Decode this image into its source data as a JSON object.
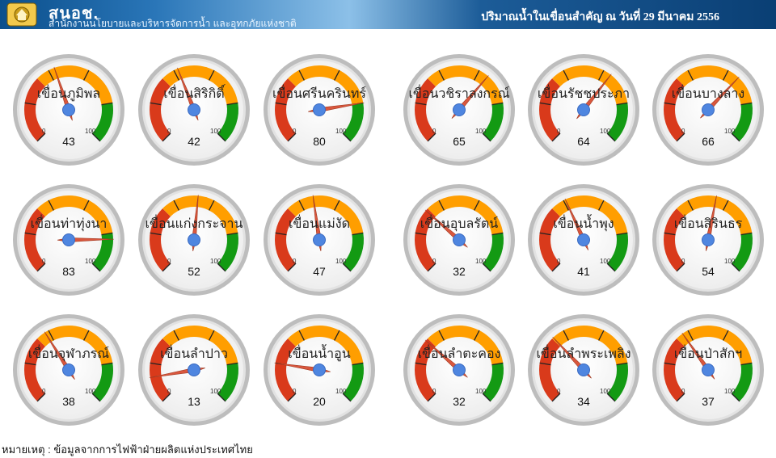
{
  "header": {
    "org_abbr": "สนอช.",
    "org_name": "สำนักงานนโยบายและบริหารจัดการน้ำ และอุทกภัยแห่งชาติ",
    "title": "ปริมาณน้ำในเขื่อนสำคัญ ณ วันที่ 29 มีนาคม 2556"
  },
  "gauge_scale": {
    "min": "0",
    "max": "100"
  },
  "colors": {
    "red": "#d93a1b",
    "orange": "#ff9e00",
    "green": "#139a13",
    "needle": "#d9573e",
    "hub": "#4f86e0"
  },
  "gauges": [
    {
      "name": "เขื่อนภูมิพล",
      "value": 43
    },
    {
      "name": "เขื่อนสิริกิติ์",
      "value": 42
    },
    {
      "name": "เขื่อนศรีนครินทร์",
      "value": 80
    },
    {
      "name": "เขื่อนวชิราลงกรณ์",
      "value": 65
    },
    {
      "name": "เขื่อนรัชชประภา",
      "value": 64
    },
    {
      "name": "เขื่อนบางลาง",
      "value": 66
    },
    {
      "name": "เขื่อนท่าทุ่งนา",
      "value": 83
    },
    {
      "name": "เขื่อนแก่งกระจาน",
      "value": 52
    },
    {
      "name": "เขื่อนแม่งัด",
      "value": 47
    },
    {
      "name": "เขื่อนอุบลรัตน์",
      "value": 32
    },
    {
      "name": "เขื่อนน้ำพุง",
      "value": 41
    },
    {
      "name": "เขื่อนสิรินธร",
      "value": 54
    },
    {
      "name": "เขื่อนจุฬาภรณ์",
      "value": 38
    },
    {
      "name": "เขื่อนลำปาว",
      "value": 13
    },
    {
      "name": "เขื่อนน้ำอูน",
      "value": 20
    },
    {
      "name": "เขื่อนลำตะคอง",
      "value": 32
    },
    {
      "name": "เขื่อนลำพระเพลิง",
      "value": 34
    },
    {
      "name": "เขื่อนป่าสักฯ",
      "value": 37
    }
  ],
  "footnote": "หมายเหตุ : ข้อมูลจากการไฟฟ้าฝ่ายผลิตแห่งประเทศไทย"
}
